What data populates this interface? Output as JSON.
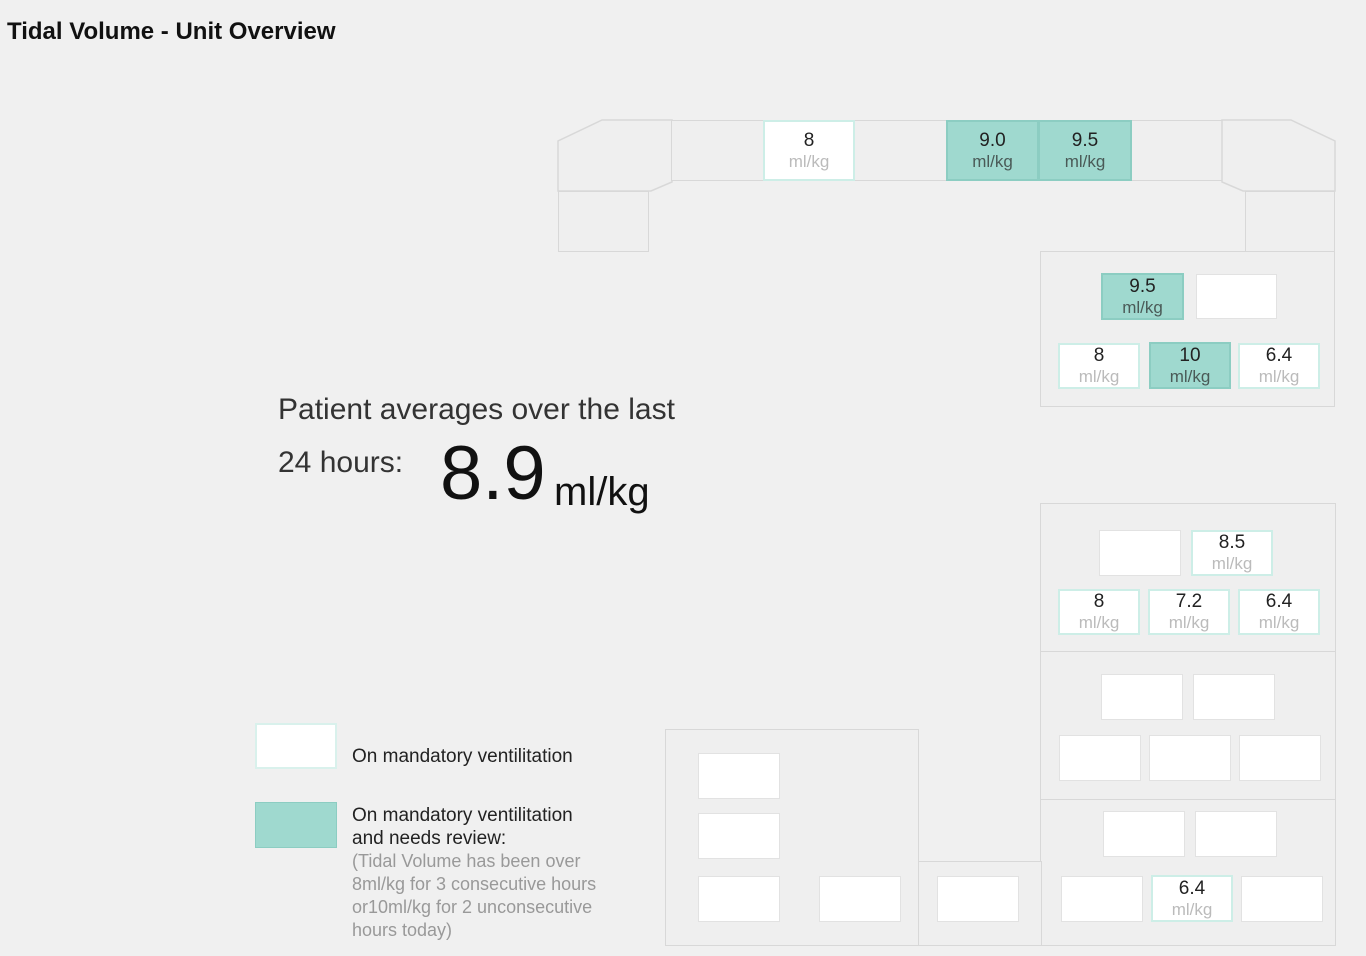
{
  "header": {
    "title": "Tidal Volume - Unit Overview"
  },
  "summary": {
    "line1": "Patient averages over the last",
    "line2": "24 hours:",
    "value": "8.9",
    "unit": "ml/kg"
  },
  "legend": {
    "ventilation_label": "On mandatory ventilitation",
    "review_label_1": "On mandatory ventilitation",
    "review_label_2": "and needs review:",
    "review_description": "(Tidal Volume has been over 8ml/kg for 3 consecutive hours or10ml/kg for 2 unconsecutive hours today)",
    "colors": {
      "ventilation": "#ffffff",
      "review": "#9fd9cf"
    }
  },
  "beds": {
    "top_3": {
      "value": "8",
      "unit": "ml/kg",
      "status": "ventilation"
    },
    "top_5": {
      "value": "9.0",
      "unit": "ml/kg",
      "status": "review"
    },
    "top_6": {
      "value": "9.5",
      "unit": "ml/kg",
      "status": "review"
    },
    "r1_a": {
      "value": "9.5",
      "unit": "ml/kg",
      "status": "review"
    },
    "r1_c": {
      "value": "8",
      "unit": "ml/kg",
      "status": "ventilation"
    },
    "r1_d": {
      "value": "10",
      "unit": "ml/kg",
      "status": "review"
    },
    "r1_e": {
      "value": "6.4",
      "unit": "ml/kg",
      "status": "ventilation"
    },
    "r2_b": {
      "value": "8.5",
      "unit": "ml/kg",
      "status": "ventilation"
    },
    "r2_c": {
      "value": "8",
      "unit": "ml/kg",
      "status": "ventilation"
    },
    "r2_d": {
      "value": "7.2",
      "unit": "ml/kg",
      "status": "ventilation"
    },
    "r2_e": {
      "value": "6.4",
      "unit": "ml/kg",
      "status": "ventilation"
    },
    "r4_d": {
      "value": "6.4",
      "unit": "ml/kg",
      "status": "ventilation"
    }
  }
}
